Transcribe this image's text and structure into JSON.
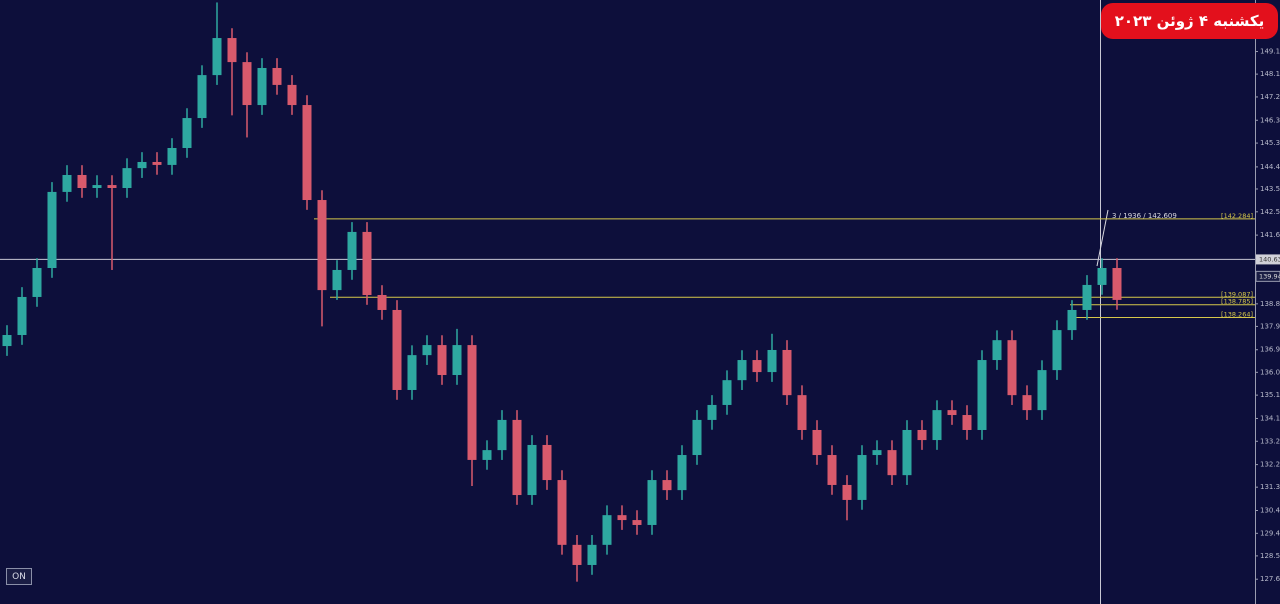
{
  "badge": "یکشنبه ۴ ژوئن ۲۰۲۳",
  "on_button": "ON",
  "cursor_label": "3 / 1936 / 142.609",
  "chart_data": {
    "type": "candlestick",
    "up_color": "#2ea8a0",
    "down_color": "#d85a6c",
    "open": [
      137.1,
      137.55,
      139.1,
      140.28,
      143.38,
      144.07,
      143.54,
      143.66,
      143.54,
      144.35,
      144.6,
      144.48,
      145.17,
      146.39,
      148.14,
      149.65,
      148.67,
      146.92,
      148.43,
      147.74,
      146.92,
      143.05,
      139.38,
      140.2,
      141.75,
      139.18,
      138.57,
      135.31,
      136.73,
      137.14,
      135.92,
      137.14,
      132.46,
      132.86,
      134.09,
      131.03,
      133.07,
      131.64,
      129.0,
      128.18,
      129.0,
      130.21,
      130.01,
      129.81,
      131.64,
      131.23,
      132.66,
      134.09,
      134.7,
      135.71,
      136.53,
      136.04,
      136.94,
      135.1,
      133.68,
      132.66,
      131.44,
      130.83,
      132.66,
      132.86,
      131.84,
      133.68,
      133.27,
      134.49,
      134.29,
      133.68,
      136.53,
      137.34,
      135.1,
      134.49,
      136.12,
      137.75,
      138.57,
      139.59,
      140.28
    ],
    "high": [
      137.95,
      139.5,
      140.68,
      143.78,
      144.47,
      144.47,
      144.06,
      144.06,
      144.75,
      145.0,
      145.0,
      145.57,
      146.79,
      148.54,
      151.1,
      150.05,
      149.07,
      148.83,
      148.83,
      148.14,
      147.32,
      143.45,
      140.6,
      142.15,
      142.15,
      139.58,
      138.97,
      137.13,
      137.54,
      137.54,
      137.8,
      137.54,
      133.26,
      134.49,
      134.49,
      133.47,
      133.47,
      132.04,
      129.4,
      129.4,
      130.61,
      130.61,
      130.41,
      132.04,
      132.04,
      133.06,
      134.49,
      135.1,
      136.11,
      136.93,
      136.93,
      137.6,
      137.34,
      135.5,
      134.08,
      133.06,
      131.84,
      133.06,
      133.26,
      133.26,
      134.08,
      134.08,
      134.89,
      134.89,
      134.69,
      136.93,
      137.74,
      137.74,
      135.5,
      136.52,
      138.15,
      138.97,
      139.99,
      140.68,
      140.68
    ],
    "low": [
      136.7,
      137.15,
      138.7,
      139.88,
      142.98,
      143.14,
      143.14,
      140.2,
      143.14,
      143.95,
      144.08,
      144.08,
      144.77,
      145.99,
      147.74,
      146.5,
      145.6,
      146.52,
      147.34,
      146.52,
      142.65,
      137.9,
      138.98,
      139.8,
      138.78,
      138.17,
      134.91,
      134.91,
      136.33,
      135.52,
      135.52,
      131.4,
      132.06,
      132.46,
      130.63,
      130.63,
      131.24,
      128.6,
      127.5,
      127.78,
      128.6,
      129.61,
      129.41,
      129.41,
      130.83,
      130.83,
      132.26,
      133.69,
      134.3,
      135.31,
      135.64,
      135.64,
      134.7,
      133.28,
      132.26,
      131.04,
      130.0,
      130.43,
      132.26,
      131.44,
      131.44,
      132.87,
      132.87,
      133.89,
      133.28,
      133.28,
      136.13,
      134.7,
      134.09,
      134.09,
      135.72,
      137.35,
      138.17,
      139.19,
      138.58
    ],
    "close": [
      137.55,
      139.1,
      140.28,
      143.38,
      144.07,
      143.54,
      143.66,
      143.54,
      144.35,
      144.6,
      144.48,
      145.17,
      146.39,
      148.14,
      149.65,
      148.67,
      146.92,
      148.43,
      147.74,
      146.92,
      143.05,
      139.38,
      140.2,
      141.75,
      139.18,
      138.57,
      135.31,
      136.73,
      137.14,
      135.92,
      137.14,
      132.46,
      132.86,
      134.09,
      131.03,
      133.07,
      131.64,
      129.0,
      128.18,
      129.0,
      130.21,
      130.01,
      129.81,
      131.64,
      131.23,
      132.66,
      134.09,
      134.7,
      135.71,
      136.53,
      136.04,
      136.94,
      135.1,
      133.68,
      132.66,
      131.44,
      130.83,
      132.66,
      132.86,
      131.84,
      133.68,
      133.27,
      134.49,
      134.29,
      133.68,
      136.53,
      137.34,
      135.1,
      134.49,
      136.12,
      137.75,
      138.57,
      139.59,
      140.28,
      138.98
    ],
    "ylim": [
      126.59,
      151.2
    ],
    "yticks": [
      {
        "value": 149.1,
        "label": "149.10"
      },
      148.18,
      147.25,
      {
        "value": 146.3,
        "label": "146.30"
      },
      145.37,
      {
        "value": 144.4,
        "label": "144.40"
      },
      {
        "value": 143.5,
        "label": "143.50"
      },
      142.57,
      141.62,
      138.82,
      {
        "value": 137.9,
        "label": "137.90"
      },
      136.95,
      136.03,
      {
        "value": 135.1,
        "label": "135.10"
      },
      134.15,
      133.22,
      132.27,
      131.35,
      {
        "value": 130.4,
        "label": "130.40"
      },
      129.47,
      128.55,
      {
        "value": 127.6,
        "label": "127.60"
      }
    ],
    "levels": [
      {
        "value": 142.284,
        "label": "[142.284]"
      },
      {
        "value": 139.087,
        "label": "[139.087]"
      },
      {
        "value": 138.785,
        "label": "[138.785]"
      },
      {
        "value": 138.264,
        "label": "[138.264]"
      }
    ],
    "level_color": "#d6c84a",
    "crosshair_price": 140.63,
    "current_price": 139.94
  }
}
